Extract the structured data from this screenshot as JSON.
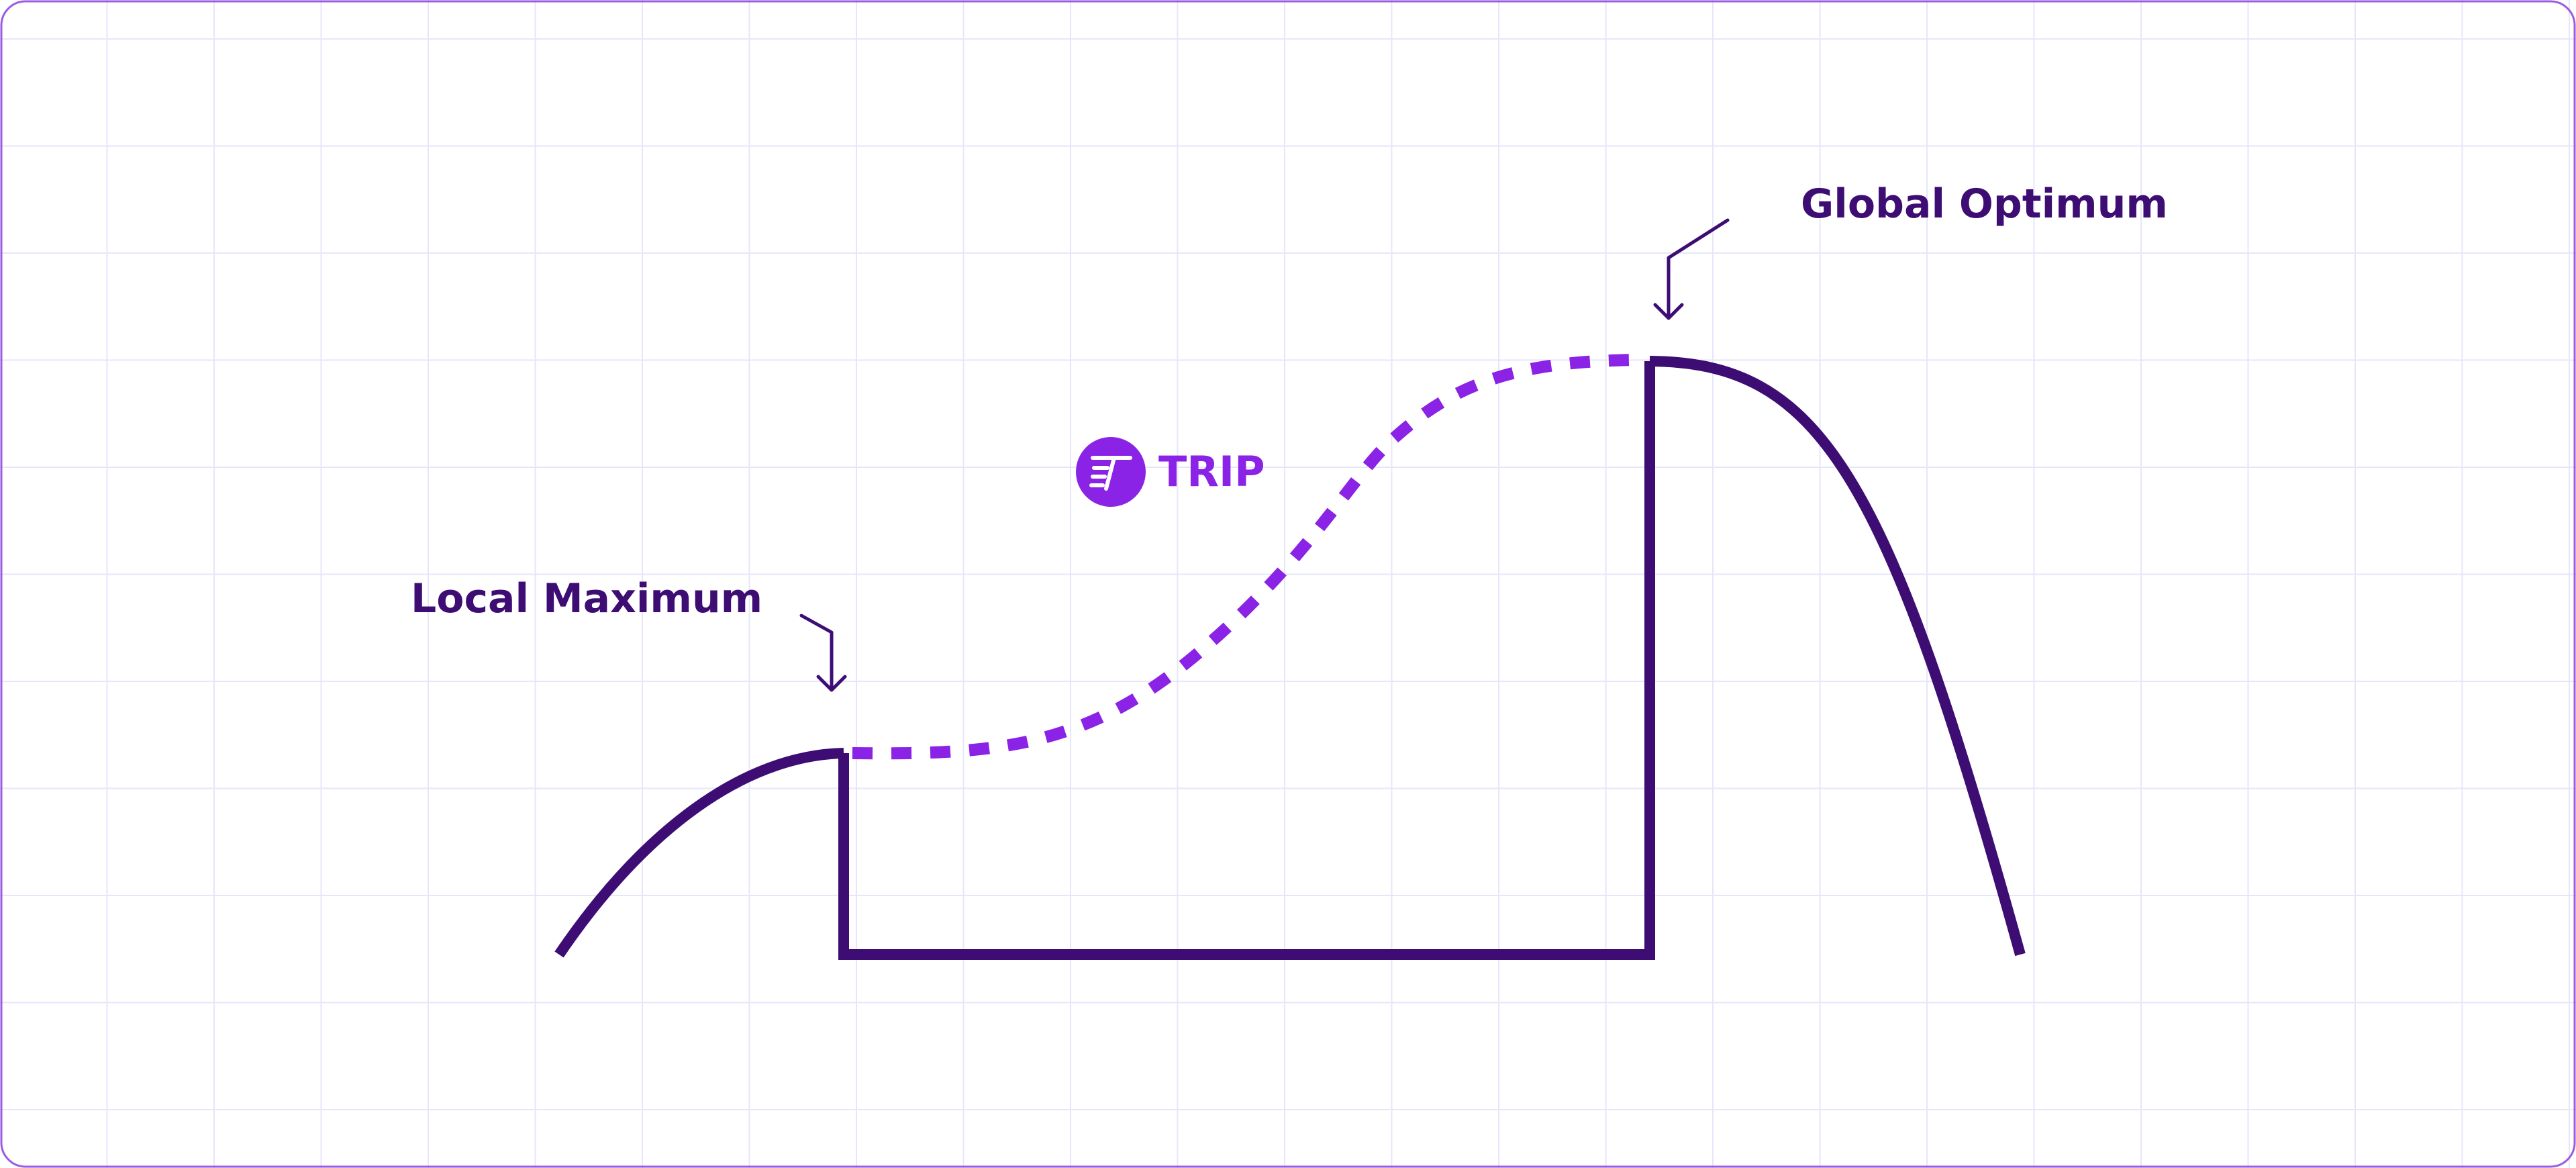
{
  "labels": {
    "local_maximum": "Local Maximum",
    "global_optimum": "Global Optimum",
    "brand": "TRIP"
  },
  "icons": {
    "brand_logo": "trip-logo-icon",
    "local_arrow": "arrow-down-icon",
    "global_arrow": "arrow-down-icon"
  },
  "colors": {
    "dark_purple": "#3d0d73",
    "bright_purple": "#8a23e6",
    "grid": "#e6e6fb",
    "frame": "#9b5ce0",
    "background": "#ffffff"
  }
}
